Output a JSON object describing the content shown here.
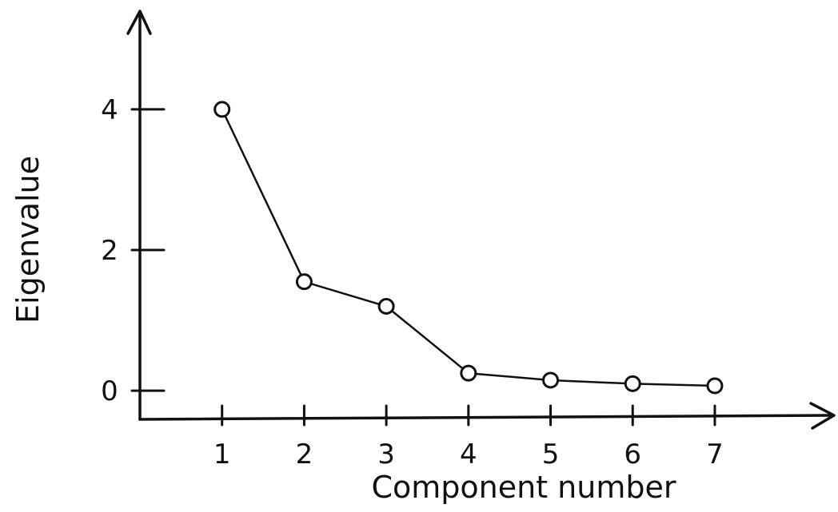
{
  "chart_data": {
    "type": "line",
    "xlabel": "Component number",
    "ylabel": "Eigenvalue",
    "x": [
      1,
      2,
      3,
      4,
      5,
      6,
      7
    ],
    "xtick_labels": [
      "1",
      "2",
      "3",
      "4",
      "5",
      "6",
      "7"
    ],
    "y": [
      4.0,
      1.55,
      1.2,
      0.25,
      0.15,
      0.1,
      0.07
    ],
    "ytick_values": [
      0,
      2,
      4
    ],
    "ytick_labels": [
      "0",
      "2",
      "4"
    ],
    "xlim": [
      0,
      8.5
    ],
    "ylim": [
      -0.35,
      5.35
    ],
    "marker": "open-circle",
    "grid": false,
    "legend": "none"
  }
}
